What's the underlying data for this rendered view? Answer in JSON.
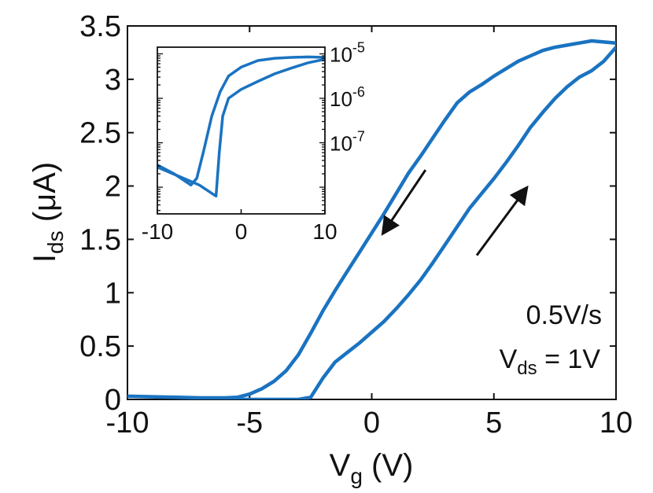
{
  "chart_data": [
    {
      "type": "line",
      "panel": "main",
      "xlabel": "V",
      "xlabel_sub": "g",
      "xlabel_unit": " (V)",
      "ylabel": "I",
      "ylabel_sub": "ds",
      "ylabel_unit": " (μA)",
      "xlim": [
        -10,
        10
      ],
      "ylim": [
        0,
        3.5
      ],
      "xticks": [
        -10,
        -5,
        0,
        5,
        10
      ],
      "xtick_labels": [
        "-10",
        "-5",
        "0",
        "5",
        "10"
      ],
      "yticks": [
        0,
        0.5,
        1,
        1.5,
        2,
        2.5,
        3,
        3.5
      ],
      "ytick_labels": [
        "0",
        "0.5",
        "1",
        "1.5",
        "2",
        "2.5",
        "3",
        "3.5"
      ],
      "grid": false,
      "color": "#1a73c1",
      "annotations": {
        "sweep_rate": "0.5V/s",
        "vds_label": "V",
        "vds_sub": "ds",
        "vds_value": " = 1V"
      },
      "arrows": [
        {
          "direction": "down",
          "from": [
            2.2,
            2.15
          ],
          "to": [
            0.5,
            1.57
          ]
        },
        {
          "direction": "up",
          "from": [
            4.3,
            1.35
          ],
          "to": [
            6.3,
            1.97
          ]
        }
      ],
      "series": [
        {
          "values": [
            [
              -10,
              0.03
            ],
            [
              -9,
              0.025
            ],
            [
              -8,
              0.02
            ],
            [
              -7,
              0.015
            ],
            [
              -6,
              0.015
            ],
            [
              -5.5,
              0.02
            ],
            [
              -5,
              0.05
            ],
            [
              -4.5,
              0.1
            ],
            [
              -4,
              0.17
            ],
            [
              -3.5,
              0.27
            ],
            [
              -3,
              0.42
            ],
            [
              -2.5,
              0.62
            ],
            [
              -2,
              0.83
            ],
            [
              -1.5,
              1.02
            ],
            [
              -1,
              1.2
            ],
            [
              -0.5,
              1.38
            ],
            [
              0,
              1.56
            ],
            [
              0.5,
              1.74
            ],
            [
              1,
              1.93
            ],
            [
              1.5,
              2.12
            ],
            [
              2,
              2.28
            ],
            [
              2.5,
              2.45
            ],
            [
              3,
              2.62
            ],
            [
              3.5,
              2.78
            ],
            [
              4,
              2.88
            ],
            [
              4.5,
              2.95
            ],
            [
              5,
              3.03
            ],
            [
              5.5,
              3.1
            ],
            [
              6,
              3.17
            ],
            [
              6.5,
              3.22
            ],
            [
              7,
              3.27
            ],
            [
              7.5,
              3.3
            ],
            [
              8,
              3.32
            ],
            [
              8.5,
              3.34
            ],
            [
              9,
              3.36
            ],
            [
              9.5,
              3.35
            ],
            [
              10,
              3.34
            ]
          ]
        },
        {
          "values": [
            [
              10,
              3.3
            ],
            [
              9.5,
              3.17
            ],
            [
              9,
              3.08
            ],
            [
              8.5,
              3.02
            ],
            [
              8,
              2.93
            ],
            [
              7.5,
              2.82
            ],
            [
              7,
              2.69
            ],
            [
              6.5,
              2.55
            ],
            [
              6,
              2.38
            ],
            [
              5.5,
              2.22
            ],
            [
              5,
              2.07
            ],
            [
              4.5,
              1.93
            ],
            [
              4,
              1.79
            ],
            [
              3.5,
              1.62
            ],
            [
              3,
              1.45
            ],
            [
              2.5,
              1.28
            ],
            [
              2,
              1.12
            ],
            [
              1.5,
              0.98
            ],
            [
              1,
              0.85
            ],
            [
              0.5,
              0.73
            ],
            [
              0,
              0.63
            ],
            [
              -0.5,
              0.53
            ],
            [
              -1,
              0.44
            ],
            [
              -1.5,
              0.35
            ],
            [
              -2,
              0.2
            ],
            [
              -2.5,
              0.02
            ],
            [
              -3,
              0
            ],
            [
              -5,
              0
            ],
            [
              -7,
              0
            ]
          ]
        }
      ]
    },
    {
      "type": "line",
      "panel": "inset",
      "xlim": [
        -10,
        10
      ],
      "ylim": [
        -8.6,
        -4.85
      ],
      "yscale": "log",
      "xticks": [
        -10,
        0,
        10
      ],
      "xtick_labels": [
        "-10",
        "0",
        "10"
      ],
      "yticks": [
        -5,
        -6,
        -7
      ],
      "ytick_labels": [
        {
          "base": "10",
          "exp": "-5"
        },
        {
          "base": "10",
          "exp": "-6"
        },
        {
          "base": "10",
          "exp": "-7"
        }
      ],
      "color": "#1a73c1",
      "series": [
        {
          "values": [
            [
              -10,
              -7.5
            ],
            [
              -8,
              -7.7
            ],
            [
              -6,
              -7.95
            ],
            [
              -5.3,
              -7.8
            ],
            [
              -4.5,
              -7.2
            ],
            [
              -3.5,
              -6.4
            ],
            [
              -2.5,
              -5.85
            ],
            [
              -1.5,
              -5.5
            ],
            [
              0,
              -5.3
            ],
            [
              2,
              -5.15
            ],
            [
              4,
              -5.1
            ],
            [
              6,
              -5.08
            ],
            [
              8,
              -5.07
            ],
            [
              10,
              -5.08
            ]
          ]
        },
        {
          "values": [
            [
              10,
              -5.12
            ],
            [
              8,
              -5.2
            ],
            [
              6,
              -5.32
            ],
            [
              4,
              -5.45
            ],
            [
              2,
              -5.62
            ],
            [
              0,
              -5.8
            ],
            [
              -1.5,
              -6.0
            ],
            [
              -2.2,
              -6.4
            ],
            [
              -2.6,
              -7.2
            ],
            [
              -3,
              -8.2
            ],
            [
              -5,
              -7.95
            ],
            [
              -7.5,
              -7.75
            ],
            [
              -10,
              -7.55
            ]
          ]
        }
      ]
    }
  ]
}
